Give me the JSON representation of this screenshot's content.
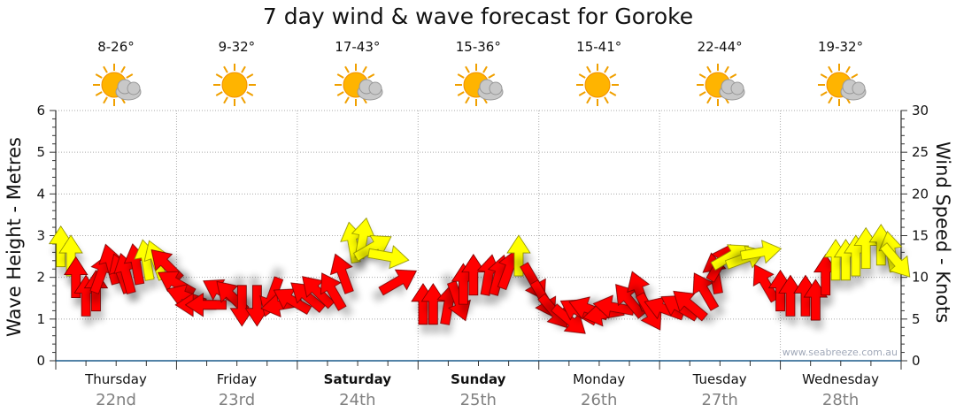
{
  "title": "7 day wind & wave forecast for Goroke",
  "watermark": "www.seabreeze.com.au",
  "days": [
    {
      "name": "Thursday",
      "date": "22nd",
      "temp": "8-26°",
      "icon": "partly-cloudy-icon",
      "bold": false
    },
    {
      "name": "Friday",
      "date": "23rd",
      "temp": "9-32°",
      "icon": "sun-icon",
      "bold": false
    },
    {
      "name": "Saturday",
      "date": "24th",
      "temp": "17-43°",
      "icon": "partly-cloudy-icon",
      "bold": true
    },
    {
      "name": "Sunday",
      "date": "25th",
      "temp": "15-36°",
      "icon": "partly-cloudy-icon",
      "bold": true
    },
    {
      "name": "Monday",
      "date": "26th",
      "temp": "15-41°",
      "icon": "sun-icon",
      "bold": false
    },
    {
      "name": "Tuesday",
      "date": "27th",
      "temp": "22-44°",
      "icon": "partly-cloudy-icon",
      "bold": false
    },
    {
      "name": "Wednesday",
      "date": "28th",
      "temp": "19-32°",
      "icon": "partly-cloudy-icon",
      "bold": false
    }
  ],
  "chart_data": {
    "type": "scatter",
    "title": "7 day wind & wave forecast for Goroke",
    "ylabel_left": "Wave Height - Metres",
    "ylabel_right": "Wind Speed - Knots",
    "ylim_left": [
      0,
      6
    ],
    "yticks_left": [
      "0",
      "1",
      "2",
      "3",
      "4",
      "5",
      "6"
    ],
    "ylim_right": [
      0,
      30
    ],
    "yticks_right": [
      "0",
      "5",
      "10",
      "15",
      "20",
      "25",
      "30"
    ],
    "xlim_hours": [
      0,
      168
    ],
    "grid": true,
    "colors": {
      "strong": "#ffff00",
      "light": "#ff0000"
    },
    "strong_threshold_knots": 12,
    "wind": {
      "hours": [
        1,
        3,
        4,
        6,
        8,
        9,
        11,
        13,
        14,
        16,
        18,
        20,
        22,
        24,
        26,
        28,
        30,
        33,
        35,
        37,
        40,
        43,
        45,
        47,
        50,
        52,
        55,
        57,
        59,
        61,
        63,
        66,
        68,
        73,
        75,
        78,
        80,
        81,
        83,
        86,
        88,
        90,
        92,
        95,
        97,
        99,
        102,
        104,
        106,
        109,
        111,
        114,
        116,
        118,
        121,
        124,
        126,
        129,
        131,
        132,
        134,
        137,
        140,
        141,
        144,
        146,
        149,
        151,
        153,
        155,
        157,
        159,
        161,
        164,
        166,
        167
      ],
      "knots": [
        13.6,
        12.5,
        9.9,
        7.7,
        8.3,
        10.4,
        11.5,
        10.4,
        10.4,
        11.5,
        12,
        12,
        11.5,
        9.3,
        7.7,
        6.7,
        6.7,
        8.3,
        7.7,
        6.7,
        6.7,
        7.7,
        6.7,
        7.2,
        7.7,
        8.3,
        8.3,
        10.4,
        14.1,
        14.6,
        13.6,
        12.5,
        9.5,
        6.7,
        6.7,
        6.7,
        7.2,
        9.1,
        10.2,
        10.2,
        10.2,
        10.9,
        12.5,
        9.5,
        7.4,
        5.9,
        4.9,
        5.9,
        6.2,
        5.6,
        6.4,
        7.2,
        8.3,
        5.9,
        6.2,
        6.4,
        6.7,
        8.3,
        10.4,
        11.7,
        12.5,
        12.3,
        13,
        9.3,
        8.3,
        7.7,
        7.7,
        7.2,
        10.2,
        12,
        12,
        12.5,
        13.4,
        13.8,
        13,
        12
      ],
      "arrow_direction_deg": [
        0,
        0,
        0,
        0,
        0,
        20,
        -15,
        -20,
        -15,
        -10,
        -10,
        -20,
        -45,
        -60,
        -70,
        -90,
        -90,
        -60,
        -45,
        180,
        180,
        200,
        -100,
        -60,
        -50,
        -45,
        -30,
        -20,
        -10,
        10,
        60,
        100,
        60,
        0,
        0,
        10,
        160,
        0,
        0,
        10,
        15,
        20,
        0,
        150,
        150,
        140,
        130,
        -60,
        -70,
        -100,
        -80,
        -40,
        -20,
        150,
        -70,
        -60,
        -50,
        -30,
        -10,
        30,
        60,
        70,
        80,
        -30,
        0,
        0,
        0,
        0,
        0,
        0,
        0,
        0,
        0,
        0,
        -10,
        140
      ]
    }
  }
}
